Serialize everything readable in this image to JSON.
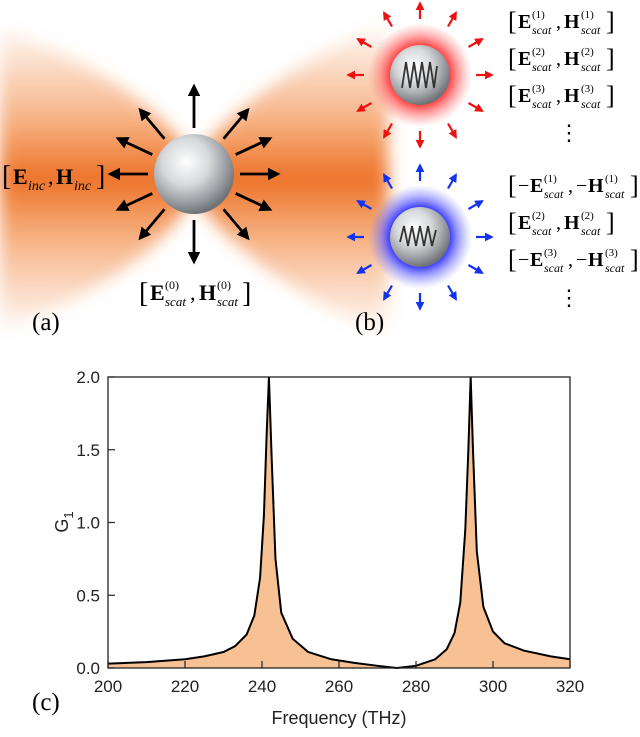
{
  "panel_a": {
    "label": "(a)",
    "inc_E": "E",
    "inc_E_sub": "inc",
    "inc_H": "H",
    "inc_H_sub": "inc",
    "scat0_E": "E",
    "scat0_H": "H",
    "scat0_sub": "scat",
    "scat0_sup": "(0)",
    "beam_color": "#f07a2c",
    "arrow_color": "#000000"
  },
  "panel_b": {
    "label": "(b)",
    "red_glow": "#ff3a3a",
    "blue_glow": "#2a2aff",
    "red_arrow_color": "#ee1111",
    "blue_arrow_color": "#1133ee",
    "field_E": "E",
    "field_H": "H",
    "field_sub": "scat",
    "ellipsis": "⋮",
    "red_terms": [
      {
        "sup": "(1)",
        "sign": ""
      },
      {
        "sup": "(2)",
        "sign": ""
      },
      {
        "sup": "(3)",
        "sign": ""
      }
    ],
    "blue_terms": [
      {
        "sup": "(1)",
        "sign": "−"
      },
      {
        "sup": "(2)",
        "sign": ""
      },
      {
        "sup": "(3)",
        "sign": "−"
      }
    ]
  },
  "panel_c": {
    "label": "(c)"
  },
  "chart_data": {
    "type": "area",
    "xlabel": "Frequency (THz)",
    "ylabel": "G",
    "ylabel_sub": "1",
    "xlim": [
      200,
      320
    ],
    "ylim": [
      0,
      2.0
    ],
    "xticks": [
      "200",
      "220",
      "240",
      "260",
      "280",
      "300",
      "320"
    ],
    "yticks": [
      "0.0",
      "0.5",
      "1.0",
      "1.5",
      "2.0"
    ],
    "fill_color": "#f7c193",
    "line_color": "#000000",
    "grid": false,
    "x": [
      200,
      210,
      220,
      225,
      230,
      233,
      236,
      238,
      239.5,
      240.5,
      241.2,
      241.8,
      242.5,
      243.5,
      245,
      248,
      252,
      258,
      264,
      270,
      275,
      280,
      285,
      288,
      290,
      291.5,
      292.8,
      293.6,
      294.2,
      294.8,
      295.8,
      297.5,
      300,
      303,
      308,
      315,
      320
    ],
    "y": [
      0.03,
      0.04,
      0.06,
      0.08,
      0.11,
      0.15,
      0.23,
      0.36,
      0.62,
      1.05,
      1.6,
      2.0,
      1.45,
      0.75,
      0.38,
      0.2,
      0.11,
      0.06,
      0.035,
      0.015,
      0.0,
      0.015,
      0.06,
      0.13,
      0.24,
      0.45,
      0.95,
      1.5,
      2.0,
      1.5,
      0.8,
      0.42,
      0.25,
      0.17,
      0.12,
      0.08,
      0.06
    ]
  }
}
